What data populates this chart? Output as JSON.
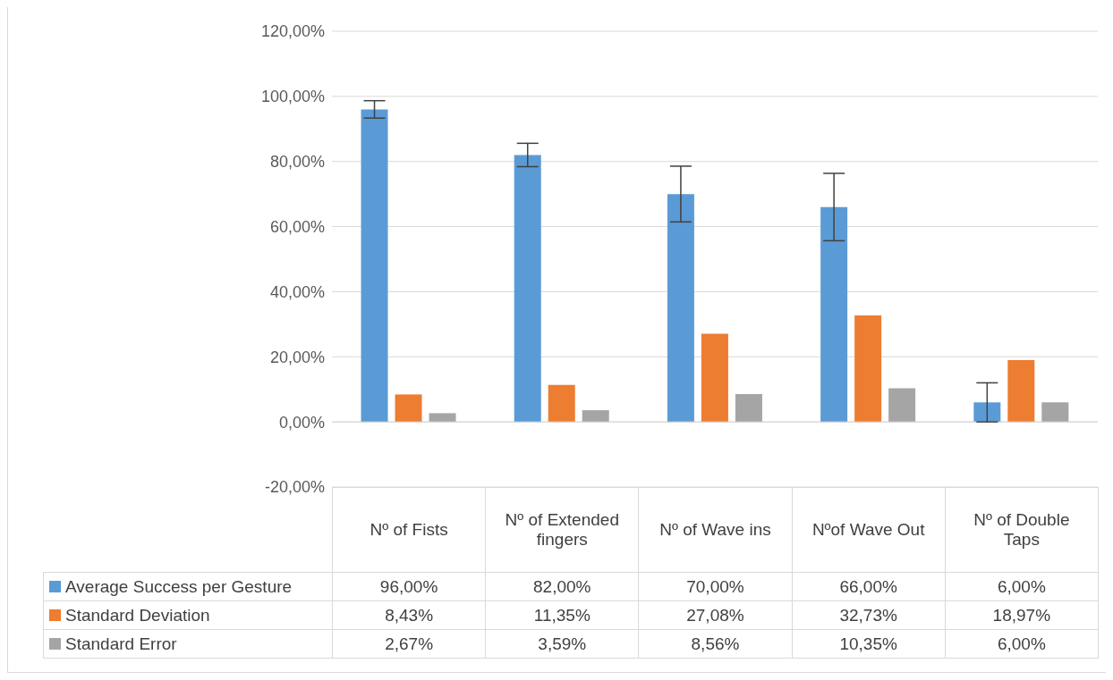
{
  "chart_data": {
    "type": "bar",
    "categories": [
      "Nº of Fists",
      "Nº of Extended fingers",
      "Nº of Wave ins",
      "Nºof Wave Out",
      "Nº of Double Taps"
    ],
    "series": [
      {
        "name": "Average Success per Gesture",
        "color": "#5b9bd5",
        "values": [
          96,
          82,
          70,
          66,
          6
        ],
        "errors": [
          2.67,
          3.59,
          8.56,
          10.35,
          6
        ],
        "value_labels": [
          "96,00%",
          "82,00%",
          "70,00%",
          "66,00%",
          "6,00%"
        ]
      },
      {
        "name": "Standard Deviation",
        "color": "#ed7d31",
        "values": [
          8.43,
          11.35,
          27.08,
          32.73,
          18.97
        ],
        "value_labels": [
          "8,43%",
          "11,35%",
          "27,08%",
          "32,73%",
          "18,97%"
        ]
      },
      {
        "name": "Standard Error",
        "color": "#a5a5a5",
        "values": [
          2.67,
          3.59,
          8.56,
          10.35,
          6
        ],
        "value_labels": [
          "2,67%",
          "3,59%",
          "8,56%",
          "10,35%",
          "6,00%"
        ]
      }
    ],
    "ylim": [
      -20,
      120
    ],
    "yticks": [
      {
        "value": -20,
        "label": "-20,00%"
      },
      {
        "value": 0,
        "label": "0,00%"
      },
      {
        "value": 20,
        "label": "20,00%"
      },
      {
        "value": 40,
        "label": "40,00%"
      },
      {
        "value": 60,
        "label": "60,00%"
      },
      {
        "value": 80,
        "label": "80,00%"
      },
      {
        "value": 100,
        "label": "100,00%"
      },
      {
        "value": 120,
        "label": "120,00%"
      }
    ],
    "grid": "y",
    "legend": "bottom"
  }
}
